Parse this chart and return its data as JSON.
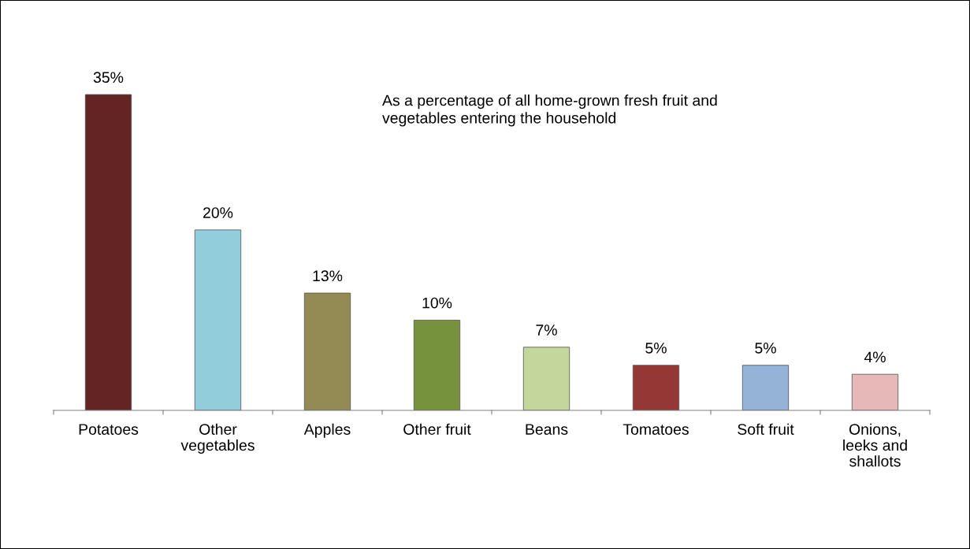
{
  "chart_data": {
    "type": "bar",
    "categories": [
      "Potatoes",
      "Other\nvegetables",
      "Apples",
      "Other fruit",
      "Beans",
      "Tomatoes",
      "Soft fruit",
      "Onions,\nleeks and\nshallots"
    ],
    "values": [
      35,
      20,
      13,
      10,
      7,
      5,
      5,
      4
    ],
    "value_labels": [
      "35%",
      "20%",
      "13%",
      "10%",
      "7%",
      "5%",
      "5%",
      "4%"
    ],
    "colors": [
      "#632423",
      "#92cddc",
      "#948a54",
      "#76923c",
      "#c3d69b",
      "#953735",
      "#95b3d7",
      "#e6b9b8"
    ],
    "annotations": [
      "As a percentage of all home-grown fresh fruit and\nvegetables entering the household"
    ],
    "grid": false,
    "legend": false
  }
}
